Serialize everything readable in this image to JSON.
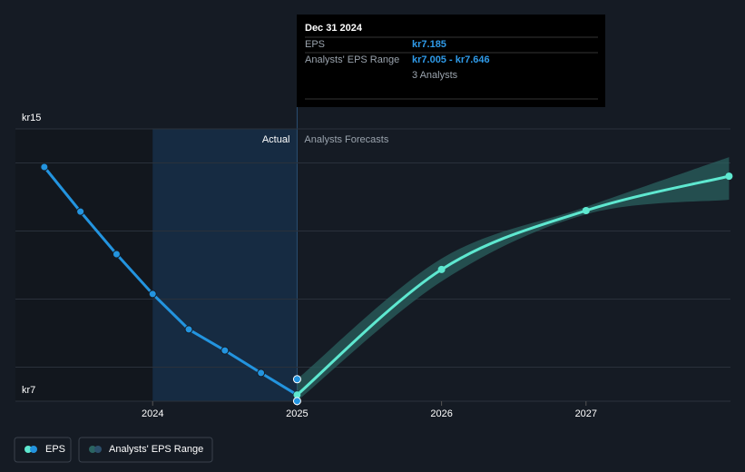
{
  "chart_data": {
    "type": "line",
    "xlim": [
      2023.05,
      2028
    ],
    "xticks": [
      2024,
      2025,
      2026,
      2027
    ],
    "ylim": [
      7,
      15
    ],
    "yticks": [
      {
        "value": 7,
        "label": "kr7"
      },
      {
        "value": 8,
        "label": null
      },
      {
        "value": 10,
        "label": null
      },
      {
        "value": 12,
        "label": null
      },
      {
        "value": 14,
        "label": null
      },
      {
        "value": 15,
        "label": "kr15"
      }
    ],
    "grid": true,
    "actual_label": "Actual",
    "forecast_label": "Analysts Forecasts",
    "divider_x": 2025,
    "highlight_from": 2024,
    "series": [
      {
        "name": "EPS",
        "color": "#2394df",
        "x": [
          2023.25,
          2023.5,
          2023.75,
          2024,
          2024.25,
          2024.5,
          2024.75,
          2025
        ],
        "values": [
          13.88,
          12.57,
          11.32,
          10.15,
          9.11,
          8.49,
          7.83,
          7.185
        ]
      },
      {
        "color": "#5ee8d0",
        "x": [
          2025,
          2026,
          2027,
          2027.99
        ],
        "values": [
          7.185,
          10.87,
          12.6,
          13.61
        ]
      }
    ],
    "range": {
      "name": "Analysts' EPS Range",
      "color": "#2b6462",
      "x": [
        2025,
        2026,
        2027,
        2027.99
      ],
      "low": [
        7.005,
        10.52,
        12.49,
        12.92
      ],
      "high": [
        7.646,
        11.19,
        12.71,
        14.17
      ]
    },
    "tooltip": {
      "date": "Dec 31 2024",
      "eps_label": "EPS",
      "eps": "kr7.185",
      "range_label": "Analysts' EPS Range",
      "range": "kr7.005 - kr7.646",
      "analysts": "3 Analysts"
    }
  }
}
